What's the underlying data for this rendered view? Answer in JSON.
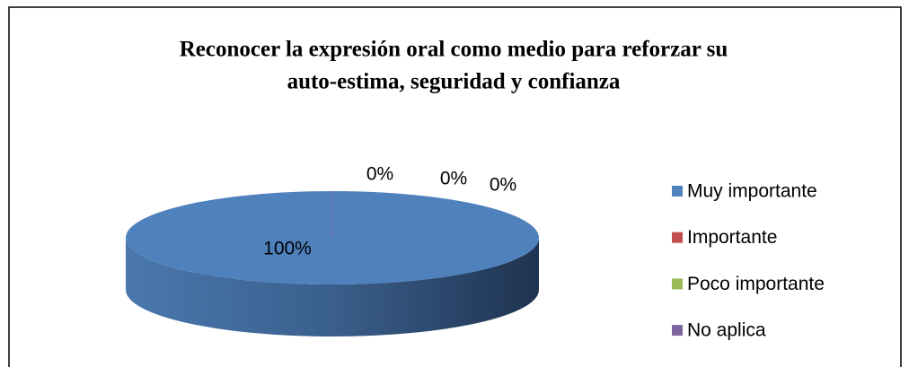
{
  "chart_data": {
    "type": "pie",
    "title": [
      "Reconocer la expresión oral como medio para reforzar su",
      "auto-estima, seguridad y confianza"
    ],
    "categories": [
      "Muy importante",
      "Importante",
      "Poco importante",
      "No aplica"
    ],
    "values": [
      100,
      0,
      0,
      0
    ],
    "value_labels": [
      "100%",
      "0%",
      "0%",
      "0%"
    ],
    "colors": [
      "#4f81bd",
      "#c0504d",
      "#9bbb59",
      "#8064a2"
    ],
    "legend": "right"
  }
}
